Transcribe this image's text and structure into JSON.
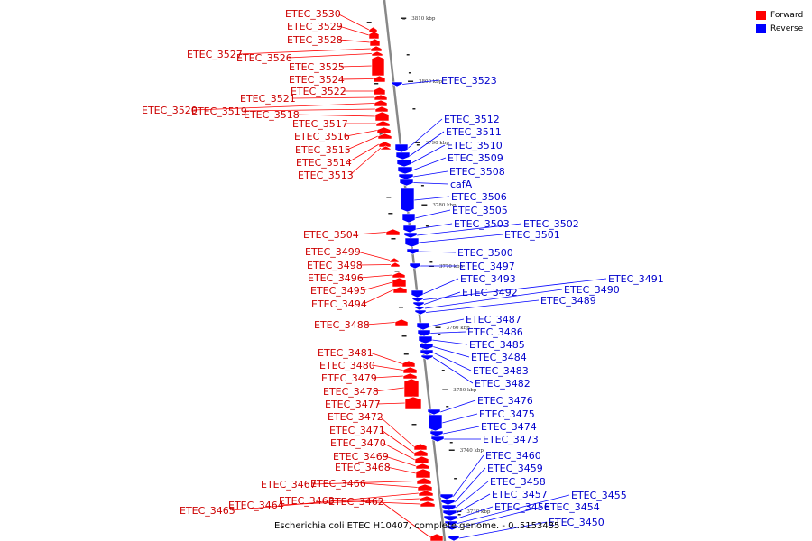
{
  "caption": "Escherichia coli ETEC H10407, complete genome. - 0..5153435",
  "legend": [
    {
      "label": "Forward",
      "color": "#ff0000"
    },
    {
      "label": "Reverse",
      "color": "#0000ff"
    }
  ],
  "colors": {
    "forward": "#ff0000",
    "reverse": "#0000ff",
    "forward_label": "#cc0000",
    "reverse_label": "#0000cc",
    "backbone": "#888888"
  },
  "scale_ticks": [
    "3810 kbp",
    "3800 kbp",
    "3790 kbp",
    "3780 kbp",
    "3770 kbp",
    "3760 kbp",
    "3750 kbp",
    "3740 kbp",
    "3730 kbp"
  ],
  "forward_genes": [
    {
      "name": "ETEC_3530",
      "row": 0
    },
    {
      "name": "ETEC_3529",
      "row": 1
    },
    {
      "name": "ETEC_3528",
      "row": 2
    },
    {
      "name": "ETEC_3527",
      "row": 3
    },
    {
      "name": "ETEC_3526",
      "row": 4
    },
    {
      "name": "ETEC_3525",
      "row": 5
    },
    {
      "name": "ETEC_3524",
      "row": 6
    },
    {
      "name": "ETEC_3522",
      "row": 7
    },
    {
      "name": "ETEC_3521",
      "row": 8
    },
    {
      "name": "ETEC_3520",
      "row": 9
    },
    {
      "name": "ETEC_3519",
      "row": 10
    },
    {
      "name": "ETEC_3518",
      "row": 11
    },
    {
      "name": "ETEC_3517",
      "row": 12
    },
    {
      "name": "ETEC_3516",
      "row": 13
    },
    {
      "name": "ETEC_3515",
      "row": 14
    },
    {
      "name": "ETEC_3514",
      "row": 15
    },
    {
      "name": "ETEC_3513",
      "row": 16
    },
    {
      "name": "ETEC_3504",
      "row": 17
    },
    {
      "name": "ETEC_3499",
      "row": 18
    },
    {
      "name": "ETEC_3498",
      "row": 19
    },
    {
      "name": "ETEC_3496",
      "row": 20
    },
    {
      "name": "ETEC_3495",
      "row": 21
    },
    {
      "name": "ETEC_3494",
      "row": 22
    },
    {
      "name": "ETEC_3488",
      "row": 23
    },
    {
      "name": "ETEC_3481",
      "row": 24
    },
    {
      "name": "ETEC_3480",
      "row": 25
    },
    {
      "name": "ETEC_3479",
      "row": 26
    },
    {
      "name": "ETEC_3478",
      "row": 27
    },
    {
      "name": "ETEC_3477",
      "row": 28
    },
    {
      "name": "ETEC_3472",
      "row": 29
    },
    {
      "name": "ETEC_3471",
      "row": 30
    },
    {
      "name": "ETEC_3470",
      "row": 31
    },
    {
      "name": "ETEC_3469",
      "row": 32
    },
    {
      "name": "ETEC_3468",
      "row": 33
    },
    {
      "name": "ETEC_3467",
      "row": 34
    },
    {
      "name": "ETEC_3466",
      "row": 35
    },
    {
      "name": "ETEC_3465",
      "row": 36
    },
    {
      "name": "ETEC_3464",
      "row": 37
    },
    {
      "name": "ETEC_3463",
      "row": 38
    },
    {
      "name": "ETEC_3462",
      "row": 39
    }
  ],
  "reverse_genes": [
    {
      "name": "ETEC_3523",
      "row": 0
    },
    {
      "name": "ETEC_3512",
      "row": 1
    },
    {
      "name": "ETEC_3511",
      "row": 2
    },
    {
      "name": "ETEC_3510",
      "row": 3
    },
    {
      "name": "ETEC_3509",
      "row": 4
    },
    {
      "name": "ETEC_3508",
      "row": 5
    },
    {
      "name": "cafA",
      "row": 6
    },
    {
      "name": "ETEC_3506",
      "row": 7
    },
    {
      "name": "ETEC_3505",
      "row": 8
    },
    {
      "name": "ETEC_3503",
      "row": 9
    },
    {
      "name": "ETEC_3502",
      "row": 10
    },
    {
      "name": "ETEC_3501",
      "row": 11
    },
    {
      "name": "ETEC_3500",
      "row": 12
    },
    {
      "name": "ETEC_3497",
      "row": 13
    },
    {
      "name": "ETEC_3493",
      "row": 14
    },
    {
      "name": "ETEC_3491",
      "row": 15
    },
    {
      "name": "ETEC_3492",
      "row": 16
    },
    {
      "name": "ETEC_3490",
      "row": 17
    },
    {
      "name": "ETEC_3489",
      "row": 18
    },
    {
      "name": "ETEC_3487",
      "row": 19
    },
    {
      "name": "ETEC_3486",
      "row": 20
    },
    {
      "name": "ETEC_3485",
      "row": 21
    },
    {
      "name": "ETEC_3484",
      "row": 22
    },
    {
      "name": "ETEC_3483",
      "row": 23
    },
    {
      "name": "ETEC_3482",
      "row": 24
    },
    {
      "name": "ETEC_3476",
      "row": 25
    },
    {
      "name": "ETEC_3475",
      "row": 26
    },
    {
      "name": "ETEC_3474",
      "row": 27
    },
    {
      "name": "ETEC_3473",
      "row": 28
    },
    {
      "name": "ETEC_3460",
      "row": 29
    },
    {
      "name": "ETEC_3459",
      "row": 30
    },
    {
      "name": "ETEC_3458",
      "row": 31
    },
    {
      "name": "ETEC_3457",
      "row": 32
    },
    {
      "name": "ETEC_3456",
      "row": 33
    },
    {
      "name": "ETEC_3455",
      "row": 34
    },
    {
      "name": "ETEC_3454",
      "row": 35
    },
    {
      "name": "ETEC_3450",
      "row": 36
    }
  ]
}
